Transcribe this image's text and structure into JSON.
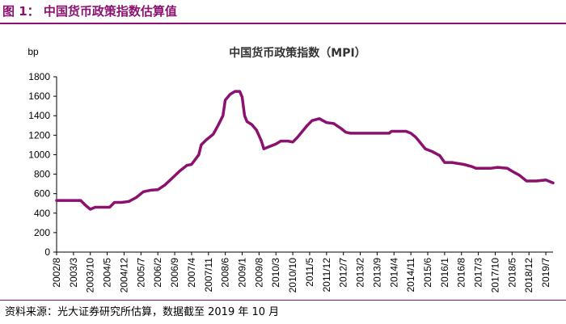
{
  "header": {
    "title": "图 1：  中国货币政策指数估算值"
  },
  "footer": {
    "source": "资料来源：光大证券研究所估算，数据截至 2019 年 10 月"
  },
  "colors": {
    "accent": "#8b1170",
    "line": "#8b1170"
  },
  "chart_data": {
    "type": "line",
    "title": "中国货币政策指数（MPI）",
    "ylabel_unit": "bp",
    "ylim": [
      0,
      1800
    ],
    "yticks": [
      0,
      200,
      400,
      600,
      800,
      1000,
      1200,
      1400,
      1600,
      1800
    ],
    "x_start": "2002/8",
    "x_end": "2019/10",
    "xticks": [
      "2002/8",
      "2003/3",
      "2003/10",
      "2004/5",
      "2004/12",
      "2005/7",
      "2006/2",
      "2006/9",
      "2007/4",
      "2007/11",
      "2008/6",
      "2009/1",
      "2009/8",
      "2010/3",
      "2010/10",
      "2011/5",
      "2011/12",
      "2012/7",
      "2013/2",
      "2013/9",
      "2014/4",
      "2014/11",
      "2015/6",
      "2016/1",
      "2016/8",
      "2017/3",
      "2017/10",
      "2018/5",
      "2018/12",
      "2019/7"
    ],
    "series": [
      {
        "name": "MPI",
        "points": [
          [
            "2002/8",
            530
          ],
          [
            "2003/6",
            530
          ],
          [
            "2003/8",
            480
          ],
          [
            "2003/10",
            440
          ],
          [
            "2003/12",
            460
          ],
          [
            "2004/6",
            460
          ],
          [
            "2004/8",
            510
          ],
          [
            "2004/11",
            510
          ],
          [
            "2005/2",
            520
          ],
          [
            "2005/5",
            560
          ],
          [
            "2005/8",
            620
          ],
          [
            "2005/11",
            635
          ],
          [
            "2006/2",
            640
          ],
          [
            "2006/5",
            690
          ],
          [
            "2006/8",
            760
          ],
          [
            "2006/11",
            830
          ],
          [
            "2007/2",
            890
          ],
          [
            "2007/4",
            900
          ],
          [
            "2007/7",
            1000
          ],
          [
            "2007/8",
            1100
          ],
          [
            "2007/10",
            1150
          ],
          [
            "2008/1",
            1210
          ],
          [
            "2008/3",
            1300
          ],
          [
            "2008/5",
            1400
          ],
          [
            "2008/6",
            1560
          ],
          [
            "2008/8",
            1620
          ],
          [
            "2008/10",
            1650
          ],
          [
            "2008/12",
            1650
          ],
          [
            "2009/1",
            1590
          ],
          [
            "2009/2",
            1400
          ],
          [
            "2009/3",
            1340
          ],
          [
            "2009/5",
            1310
          ],
          [
            "2009/7",
            1250
          ],
          [
            "2009/9",
            1140
          ],
          [
            "2009/10",
            1060
          ],
          [
            "2009/12",
            1080
          ],
          [
            "2010/3",
            1110
          ],
          [
            "2010/5",
            1140
          ],
          [
            "2010/8",
            1140
          ],
          [
            "2010/10",
            1130
          ],
          [
            "2010/12",
            1180
          ],
          [
            "2011/2",
            1240
          ],
          [
            "2011/4",
            1300
          ],
          [
            "2011/6",
            1350
          ],
          [
            "2011/9",
            1370
          ],
          [
            "2011/12",
            1330
          ],
          [
            "2012/3",
            1320
          ],
          [
            "2012/6",
            1270
          ],
          [
            "2012/8",
            1230
          ],
          [
            "2012/10",
            1220
          ],
          [
            "2013/6",
            1220
          ],
          [
            "2013/9",
            1220
          ],
          [
            "2014/2",
            1220
          ],
          [
            "2014/3",
            1240
          ],
          [
            "2014/9",
            1240
          ],
          [
            "2014/11",
            1220
          ],
          [
            "2015/1",
            1180
          ],
          [
            "2015/3",
            1120
          ],
          [
            "2015/5",
            1060
          ],
          [
            "2015/8",
            1030
          ],
          [
            "2015/11",
            990
          ],
          [
            "2016/1",
            920
          ],
          [
            "2016/4",
            920
          ],
          [
            "2016/9",
            900
          ],
          [
            "2016/12",
            880
          ],
          [
            "2017/2",
            860
          ],
          [
            "2017/5",
            860
          ],
          [
            "2017/8",
            860
          ],
          [
            "2017/11",
            870
          ],
          [
            "2018/3",
            860
          ],
          [
            "2018/5",
            830
          ],
          [
            "2018/8",
            790
          ],
          [
            "2018/11",
            730
          ],
          [
            "2019/3",
            730
          ],
          [
            "2019/7",
            740
          ],
          [
            "2019/10",
            710
          ]
        ]
      }
    ]
  }
}
